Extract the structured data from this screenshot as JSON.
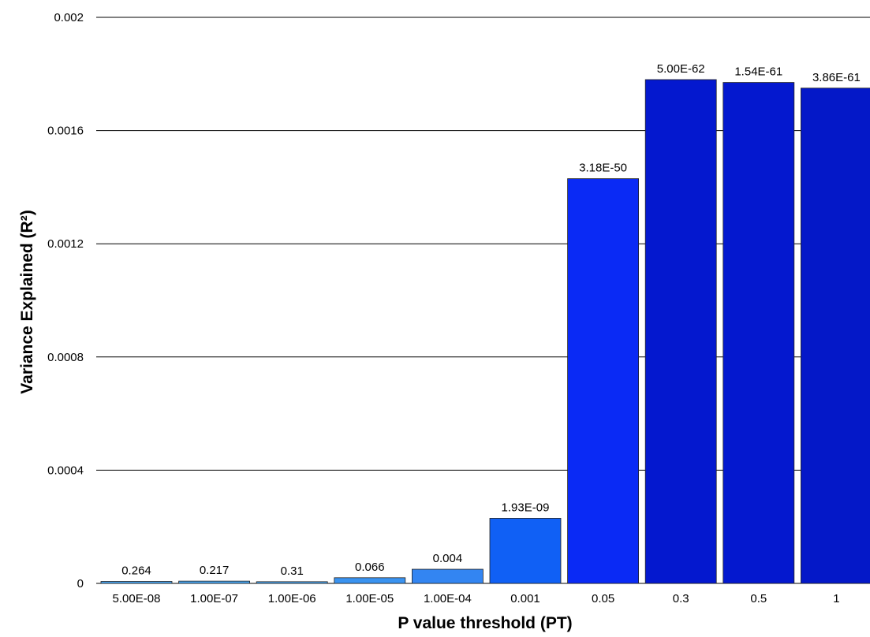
{
  "chart_data": {
    "type": "bar",
    "xlabel": "P value threshold (PT)",
    "ylabel": "Variance Explained (R²)",
    "ylim": [
      0,
      0.002
    ],
    "yticks": [
      {
        "value": 0,
        "label": "0"
      },
      {
        "value": 0.0004,
        "label": "0.0004"
      },
      {
        "value": 0.0008,
        "label": "0.0008"
      },
      {
        "value": 0.0012,
        "label": "0.0012"
      },
      {
        "value": 0.0016,
        "label": "0.0016"
      },
      {
        "value": 0.002,
        "label": "0.002"
      }
    ],
    "grid": true,
    "categories": [
      "5.00E-08",
      "1.00E-07",
      "1.00E-06",
      "1.00E-05",
      "1.00E-04",
      "0.001",
      "0.05",
      "0.3",
      "0.5",
      "1"
    ],
    "values": [
      7e-06,
      8e-06,
      6e-06,
      2e-05,
      5e-05,
      0.00023,
      0.00143,
      0.00178,
      0.00177,
      0.00175
    ],
    "data_labels": [
      "0.264",
      "0.217",
      "0.31",
      "0.066",
      "0.004",
      "1.93E-09",
      "3.18E-50",
      "5.00E-62",
      "1.54E-61",
      "3.86E-61"
    ],
    "colors": [
      "#4aa6f0",
      "#4aa6f0",
      "#4aa6f0",
      "#3a93f0",
      "#3385f2",
      "#1060f5",
      "#0a2af5",
      "#0418cf",
      "#0418cf",
      "#0418c8"
    ]
  }
}
